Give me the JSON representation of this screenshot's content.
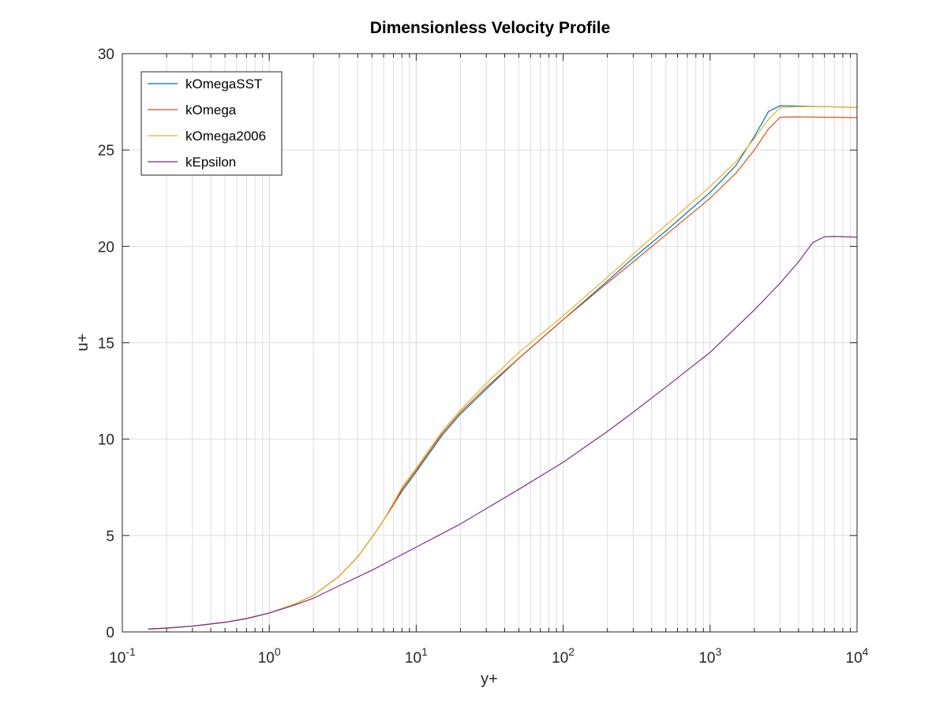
{
  "chart_data": {
    "type": "line",
    "title": "Dimensionless Velocity Profile",
    "xlabel": "y+",
    "ylabel": "u+",
    "xscale": "log",
    "xlim": [
      0.1,
      10000
    ],
    "ylim": [
      0,
      30
    ],
    "grid": true,
    "legend_position": "top-left",
    "x_ticks": [
      {
        "base": "10",
        "exp": "-1"
      },
      {
        "base": "10",
        "exp": "0"
      },
      {
        "base": "10",
        "exp": "1"
      },
      {
        "base": "10",
        "exp": "2"
      },
      {
        "base": "10",
        "exp": "3"
      },
      {
        "base": "10",
        "exp": "4"
      }
    ],
    "y_ticks": [
      "0",
      "5",
      "10",
      "15",
      "20",
      "25",
      "30"
    ],
    "series": [
      {
        "name": "kOmegaSST",
        "color": "#0072BD",
        "x": [
          0.15,
          0.2,
          0.3,
          0.5,
          0.7,
          1,
          1.5,
          2,
          3,
          4,
          5,
          6,
          7,
          8,
          10,
          15,
          20,
          30,
          50,
          100,
          200,
          300,
          500,
          1000,
          1500,
          2000,
          2500,
          3000,
          4000,
          6000,
          10000
        ],
        "y": [
          0.15,
          0.2,
          0.3,
          0.5,
          0.69,
          0.98,
          1.45,
          1.9,
          2.9,
          3.9,
          4.9,
          5.8,
          6.6,
          7.3,
          8.3,
          10.2,
          11.3,
          12.6,
          14.2,
          16.2,
          18.2,
          19.4,
          20.8,
          22.8,
          24.2,
          25.7,
          27.0,
          27.3,
          27.28,
          27.25,
          27.2
        ]
      },
      {
        "name": "kOmega",
        "color": "#D95319",
        "x": [
          0.15,
          0.2,
          0.3,
          0.5,
          0.7,
          1,
          1.5,
          2,
          3,
          4,
          5,
          6,
          7,
          8,
          10,
          15,
          20,
          30,
          50,
          100,
          200,
          300,
          500,
          1000,
          1500,
          2000,
          2500,
          3000,
          4000,
          6000,
          10000
        ],
        "y": [
          0.15,
          0.2,
          0.3,
          0.5,
          0.69,
          0.98,
          1.45,
          1.9,
          2.9,
          3.9,
          4.9,
          5.8,
          6.6,
          7.4,
          8.4,
          10.3,
          11.4,
          12.7,
          14.2,
          16.2,
          18.1,
          19.2,
          20.6,
          22.5,
          23.8,
          25.0,
          26.1,
          26.7,
          26.72,
          26.7,
          26.68
        ]
      },
      {
        "name": "kOmega2006",
        "color": "#EDB120",
        "x": [
          0.15,
          0.2,
          0.3,
          0.5,
          0.7,
          1,
          1.5,
          2,
          3,
          4,
          5,
          6,
          7,
          8,
          10,
          15,
          20,
          30,
          50,
          100,
          200,
          300,
          500,
          1000,
          1500,
          2000,
          2500,
          3000,
          4000,
          6000,
          10000
        ],
        "y": [
          0.15,
          0.2,
          0.3,
          0.5,
          0.69,
          0.98,
          1.45,
          1.9,
          2.9,
          3.9,
          4.9,
          5.8,
          6.7,
          7.5,
          8.5,
          10.4,
          11.5,
          12.9,
          14.5,
          16.4,
          18.4,
          19.6,
          21.1,
          23.1,
          24.4,
          25.6,
          26.6,
          27.2,
          27.25,
          27.25,
          27.2
        ]
      },
      {
        "name": "kEpsilon",
        "color": "#7E2F8E",
        "x": [
          0.15,
          0.2,
          0.3,
          0.5,
          0.7,
          1,
          1.5,
          2,
          3,
          5,
          10,
          20,
          30,
          50,
          100,
          200,
          300,
          500,
          1000,
          2000,
          3000,
          4000,
          5000,
          6000,
          7000,
          10000
        ],
        "y": [
          0.15,
          0.2,
          0.3,
          0.5,
          0.69,
          0.98,
          1.4,
          1.75,
          2.4,
          3.2,
          4.4,
          5.6,
          6.4,
          7.4,
          8.8,
          10.4,
          11.4,
          12.7,
          14.5,
          16.7,
          18.1,
          19.2,
          20.2,
          20.5,
          20.52,
          20.48
        ]
      }
    ]
  }
}
